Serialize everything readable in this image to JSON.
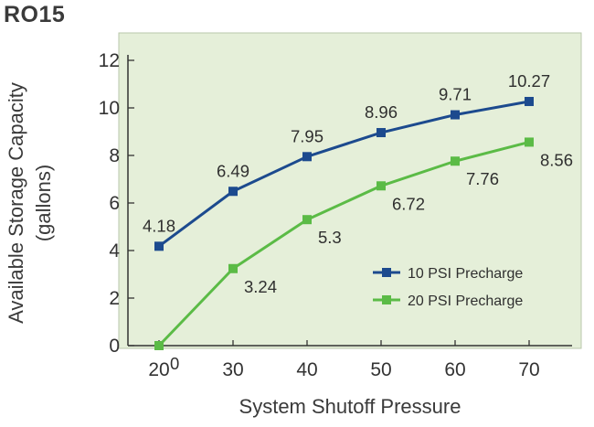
{
  "chart_data": {
    "type": "line",
    "title": "RO15",
    "xlabel": "System Shutoff Pressure",
    "ylabel_lines": [
      "Available Storage Capacity",
      "(gallons)"
    ],
    "x": [
      20,
      30,
      40,
      50,
      60,
      70
    ],
    "xlim": [
      15,
      75
    ],
    "ylim": [
      0,
      12
    ],
    "yticks": [
      0,
      2,
      4,
      6,
      8,
      10,
      12
    ],
    "grid": false,
    "legend_position": "lower-right",
    "series": [
      {
        "name": "10 PSI Precharge",
        "color": "#1c4a8e",
        "values": [
          4.18,
          6.49,
          7.95,
          8.96,
          9.71,
          10.27
        ],
        "labels": [
          "4.18",
          "6.49",
          "7.95",
          "8.96",
          "9.71",
          "10.27"
        ],
        "label_side": "above"
      },
      {
        "name": "20 PSI Precharge",
        "color": "#5bbb46",
        "values": [
          0,
          3.24,
          5.3,
          6.72,
          7.76,
          8.56
        ],
        "labels": [
          "0",
          "3.24",
          "5.3",
          "6.72",
          "7.76",
          "8.56"
        ],
        "label_side": "below-right"
      }
    ]
  },
  "colors": {
    "plot_background": "#e5efd9",
    "plot_border": "#b9c7ab",
    "axis": "#333333"
  }
}
